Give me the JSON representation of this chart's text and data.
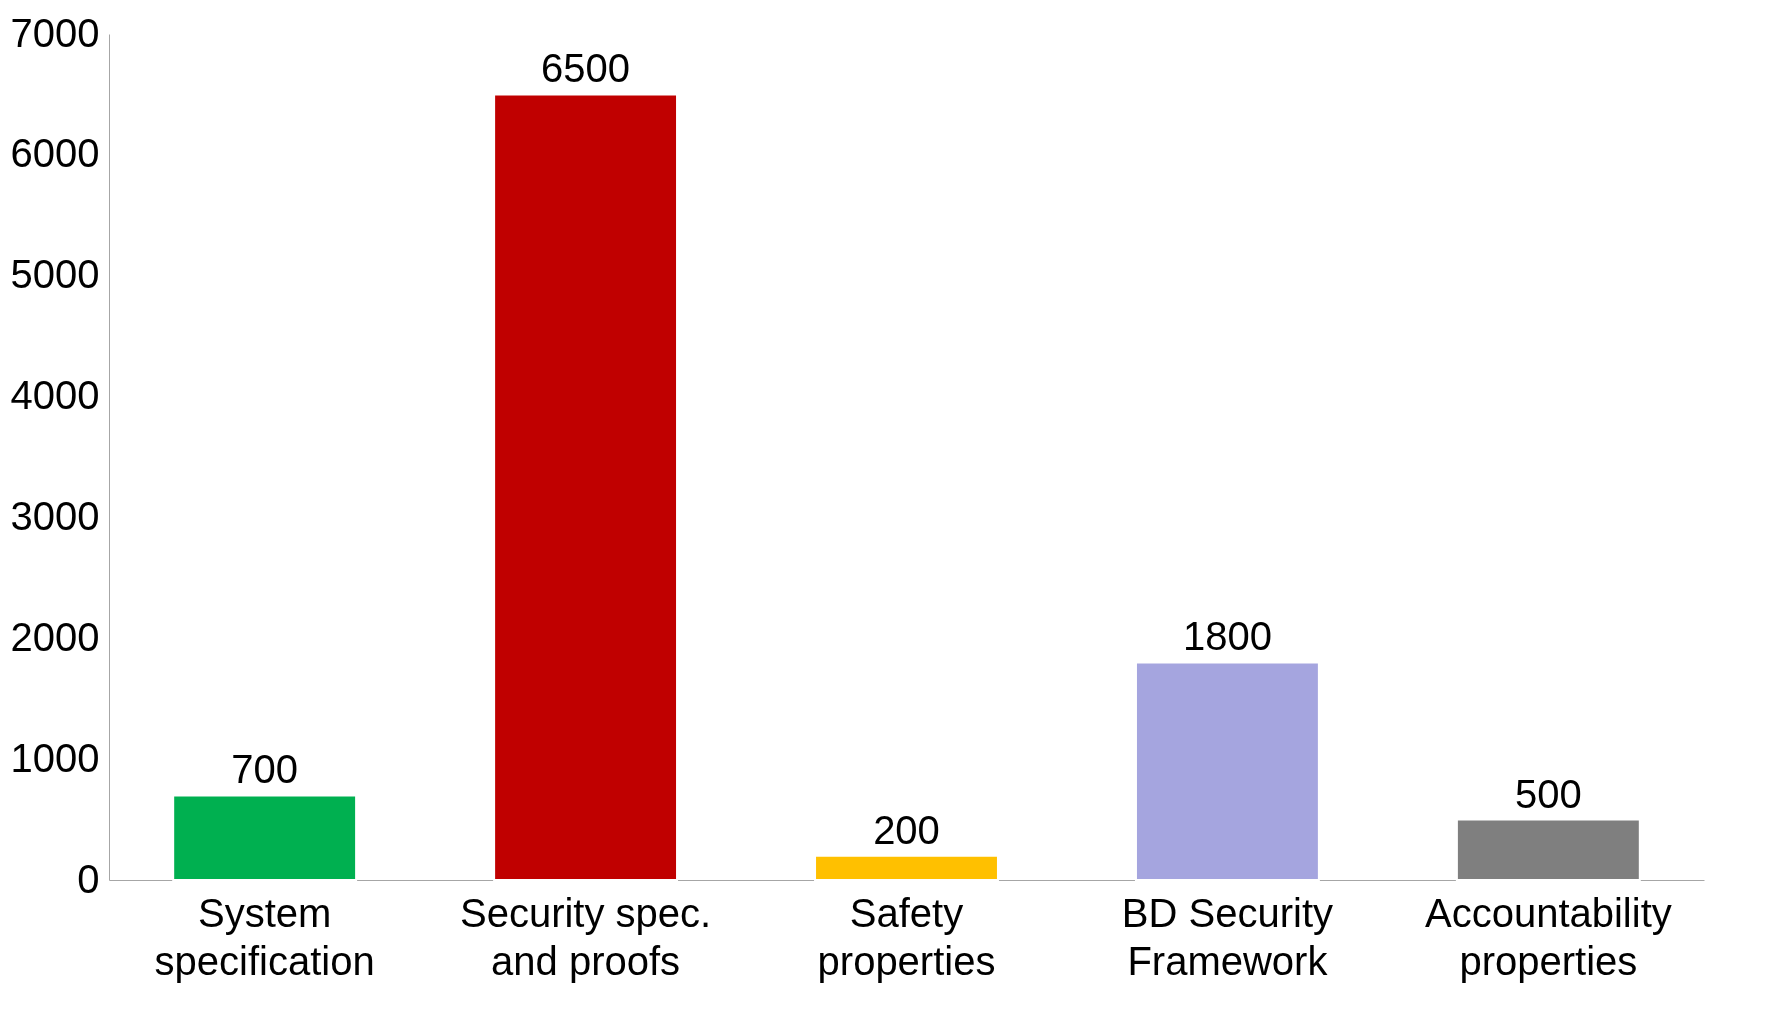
{
  "chart_data": {
    "type": "bar",
    "categories": [
      "System specification",
      "Security spec. and proofs",
      "Safety properties",
      "BD Security Framework",
      "Accountability properties"
    ],
    "values": [
      700,
      6500,
      200,
      1800,
      500
    ],
    "colors": [
      "#00b050",
      "#c00000",
      "#ffc000",
      "#a5a5df",
      "#7f7f7f"
    ],
    "ylim": [
      0,
      7000
    ],
    "yticks": [
      0,
      1000,
      2000,
      3000,
      4000,
      5000,
      6000,
      7000
    ],
    "data_labels": true,
    "grid": false
  }
}
